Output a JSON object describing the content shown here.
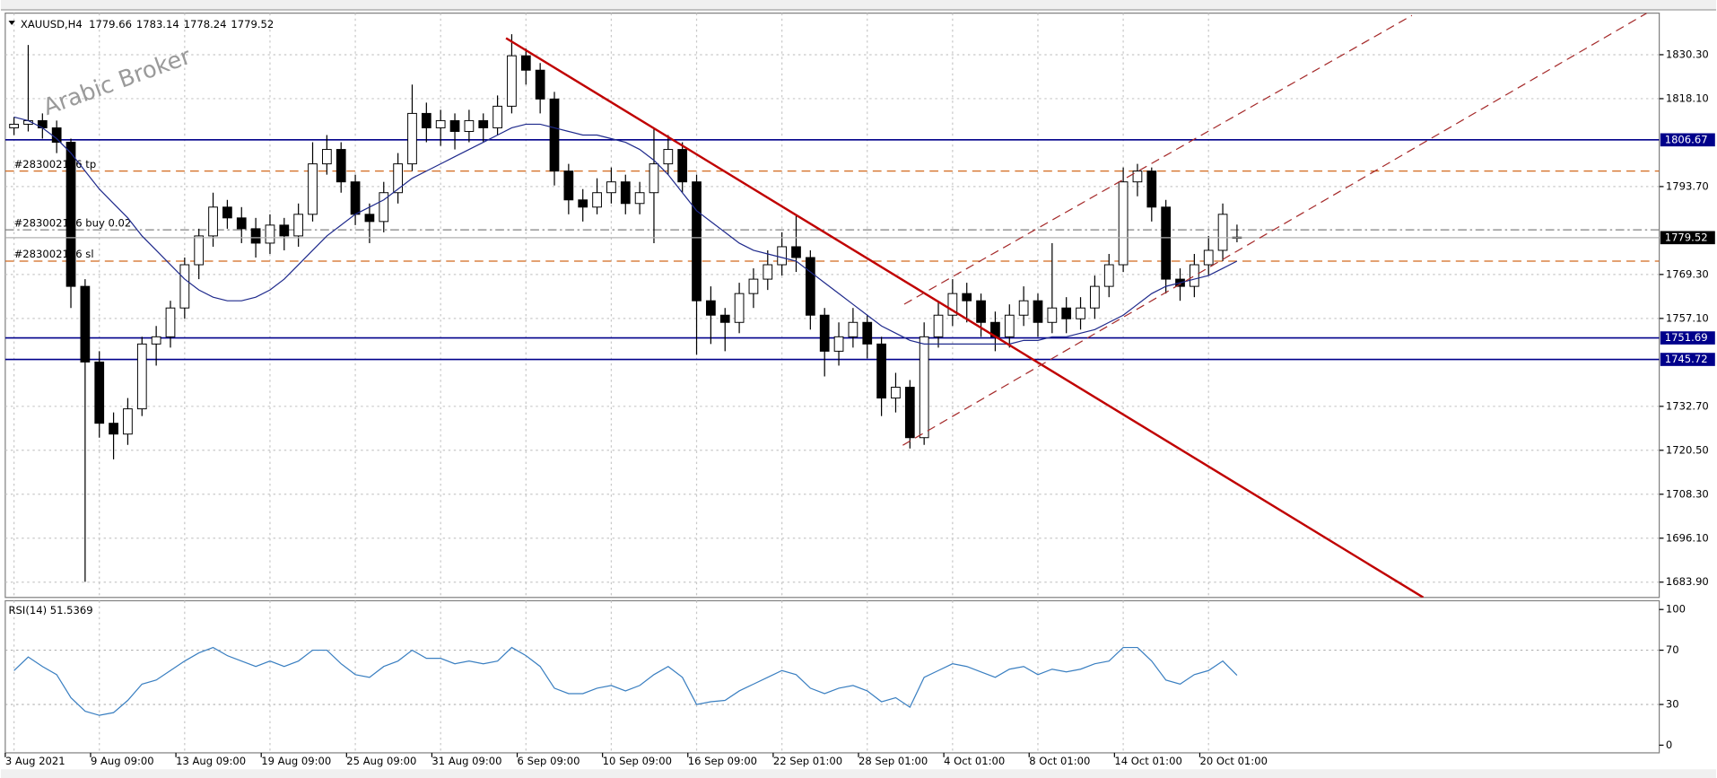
{
  "chart_data": {
    "type": "candlestick",
    "title": "XAUUSD,H4",
    "watermark": "Arabic Broker",
    "up_color": "#ffffff",
    "down_color": "#000000",
    "candles": [
      [
        1810,
        1813,
        1808,
        1811
      ],
      [
        1811,
        1833,
        1809,
        1812
      ],
      [
        1812,
        1814,
        1807,
        1810
      ],
      [
        1810,
        1812,
        1803,
        1806
      ],
      [
        1806,
        1807,
        1760,
        1766
      ],
      [
        1766,
        1768,
        1684,
        1745
      ],
      [
        1745,
        1748,
        1724,
        1728
      ],
      [
        1728,
        1731,
        1718,
        1725
      ],
      [
        1725,
        1735,
        1722,
        1732
      ],
      [
        1732,
        1752,
        1730,
        1750
      ],
      [
        1750,
        1755,
        1744,
        1752
      ],
      [
        1752,
        1762,
        1749,
        1760
      ],
      [
        1760,
        1774,
        1757,
        1772
      ],
      [
        1772,
        1782,
        1768,
        1780
      ],
      [
        1780,
        1792,
        1777,
        1788
      ],
      [
        1788,
        1790,
        1782,
        1785
      ],
      [
        1785,
        1788,
        1778,
        1782
      ],
      [
        1782,
        1785,
        1774,
        1778
      ],
      [
        1778,
        1786,
        1775,
        1783
      ],
      [
        1783,
        1785,
        1776,
        1780
      ],
      [
        1780,
        1789,
        1777,
        1786
      ],
      [
        1786,
        1806,
        1784,
        1800
      ],
      [
        1800,
        1808,
        1797,
        1804
      ],
      [
        1804,
        1806,
        1792,
        1795
      ],
      [
        1795,
        1797,
        1783,
        1786
      ],
      [
        1786,
        1789,
        1778,
        1784
      ],
      [
        1784,
        1795,
        1781,
        1792
      ],
      [
        1792,
        1803,
        1789,
        1800
      ],
      [
        1800,
        1822,
        1798,
        1814
      ],
      [
        1814,
        1817,
        1806,
        1810
      ],
      [
        1810,
        1815,
        1805,
        1812
      ],
      [
        1812,
        1814,
        1804,
        1809
      ],
      [
        1809,
        1815,
        1806,
        1812
      ],
      [
        1812,
        1814,
        1806,
        1810
      ],
      [
        1810,
        1819,
        1808,
        1816
      ],
      [
        1816,
        1836,
        1814,
        1830
      ],
      [
        1830,
        1832,
        1822,
        1826
      ],
      [
        1826,
        1828,
        1814,
        1818
      ],
      [
        1818,
        1820,
        1794,
        1798
      ],
      [
        1798,
        1800,
        1786,
        1790
      ],
      [
        1790,
        1793,
        1784,
        1788
      ],
      [
        1788,
        1796,
        1786,
        1792
      ],
      [
        1792,
        1799,
        1789,
        1795
      ],
      [
        1795,
        1797,
        1786,
        1789
      ],
      [
        1789,
        1795,
        1786,
        1792
      ],
      [
        1792,
        1810,
        1778,
        1800
      ],
      [
        1800,
        1808,
        1797,
        1804
      ],
      [
        1804,
        1806,
        1792,
        1795
      ],
      [
        1795,
        1797,
        1747,
        1762
      ],
      [
        1762,
        1766,
        1750,
        1758
      ],
      [
        1758,
        1760,
        1748,
        1756
      ],
      [
        1756,
        1767,
        1753,
        1764
      ],
      [
        1764,
        1771,
        1760,
        1768
      ],
      [
        1768,
        1776,
        1765,
        1772
      ],
      [
        1772,
        1781,
        1769,
        1777
      ],
      [
        1777,
        1786,
        1770,
        1774
      ],
      [
        1774,
        1776,
        1754,
        1758
      ],
      [
        1758,
        1760,
        1741,
        1748
      ],
      [
        1748,
        1756,
        1744,
        1752
      ],
      [
        1752,
        1760,
        1749,
        1756
      ],
      [
        1756,
        1758,
        1746,
        1750
      ],
      [
        1750,
        1752,
        1730,
        1735
      ],
      [
        1735,
        1742,
        1731,
        1738
      ],
      [
        1738,
        1740,
        1721,
        1724
      ],
      [
        1724,
        1756,
        1722,
        1752
      ],
      [
        1752,
        1762,
        1749,
        1758
      ],
      [
        1758,
        1768,
        1755,
        1764
      ],
      [
        1764,
        1767,
        1756,
        1762
      ],
      [
        1762,
        1764,
        1752,
        1756
      ],
      [
        1756,
        1759,
        1748,
        1752
      ],
      [
        1752,
        1761,
        1749,
        1758
      ],
      [
        1758,
        1766,
        1755,
        1762
      ],
      [
        1762,
        1764,
        1752,
        1756
      ],
      [
        1756,
        1778,
        1753,
        1760
      ],
      [
        1760,
        1763,
        1753,
        1757
      ],
      [
        1757,
        1763,
        1754,
        1760
      ],
      [
        1760,
        1769,
        1757,
        1766
      ],
      [
        1766,
        1775,
        1763,
        1772
      ],
      [
        1772,
        1799,
        1770,
        1795
      ],
      [
        1795,
        1800,
        1791,
        1798
      ],
      [
        1798,
        1799,
        1784,
        1788
      ],
      [
        1788,
        1790,
        1764,
        1768
      ],
      [
        1768,
        1771,
        1762,
        1766
      ],
      [
        1766,
        1775,
        1763,
        1772
      ],
      [
        1772,
        1780,
        1769,
        1776
      ],
      [
        1776,
        1789,
        1773,
        1786
      ],
      [
        1779.66,
        1783.14,
        1778.24,
        1779.52
      ]
    ],
    "categories": [
      "3 Aug 2021",
      null,
      null,
      null,
      null,
      null,
      "9 Aug 09:00",
      null,
      null,
      null,
      null,
      null,
      "13 Aug 09:00",
      null,
      null,
      null,
      null,
      null,
      "19 Aug 09:00",
      null,
      null,
      null,
      null,
      null,
      "25 Aug 09:00",
      null,
      null,
      null,
      null,
      null,
      "31 Aug 09:00",
      null,
      null,
      null,
      null,
      null,
      "6 Sep 09:00",
      null,
      null,
      null,
      null,
      null,
      "10 Sep 09:00",
      null,
      null,
      null,
      null,
      null,
      "16 Sep 09:00",
      null,
      null,
      null,
      null,
      null,
      "22 Sep 01:00",
      null,
      null,
      null,
      null,
      null,
      "28 Sep 01:00",
      null,
      null,
      null,
      null,
      null,
      "4 Oct 01:00",
      null,
      null,
      null,
      null,
      null,
      "8 Oct 01:00",
      null,
      null,
      null,
      null,
      null,
      "14 Oct 01:00",
      null,
      null,
      null,
      null,
      null,
      "20 Oct 01:00",
      null,
      null
    ],
    "ma": [
      1813,
      1812,
      1810,
      1807,
      1803,
      1798,
      1793,
      1789,
      1785,
      1780,
      1776,
      1772,
      1768,
      1765,
      1763,
      1762,
      1762,
      1763,
      1765,
      1768,
      1772,
      1776,
      1780,
      1783,
      1786,
      1788,
      1790,
      1793,
      1796,
      1798,
      1800,
      1802,
      1804,
      1806,
      1808,
      1810,
      1811,
      1811,
      1810,
      1809,
      1808,
      1808,
      1807,
      1806,
      1804,
      1801,
      1797,
      1792,
      1787,
      1784,
      1781,
      1778,
      1776,
      1775,
      1774,
      1773,
      1770,
      1767,
      1764,
      1761,
      1758,
      1755,
      1753,
      1751,
      1750,
      1750,
      1750,
      1750,
      1750,
      1750,
      1750,
      1751,
      1751,
      1752,
      1752,
      1753,
      1754,
      1756,
      1758,
      1761,
      1764,
      1766,
      1767,
      1768,
      1769,
      1771,
      1773
    ],
    "ma_color": "#1f2a8c",
    "ylim": [
      1679.65,
      1841.84
    ],
    "yticks": [
      {
        "value": 1830.3,
        "label": "1830.30"
      },
      {
        "value": 1818.1,
        "label": "1818.10"
      },
      {
        "value": 1793.7,
        "label": "1793.70"
      },
      {
        "value": 1769.3,
        "label": "1769.30"
      },
      {
        "value": 1757.1,
        "label": "1757.10"
      },
      {
        "value": 1732.7,
        "label": "1732.70"
      },
      {
        "value": 1720.5,
        "label": "1720.50"
      },
      {
        "value": 1708.3,
        "label": "1708.30"
      },
      {
        "value": 1696.1,
        "label": "1696.10"
      },
      {
        "value": 1683.9,
        "label": "1683.90"
      }
    ],
    "grid": true,
    "levels": [
      {
        "value": 1806.67,
        "color": "#00008b"
      },
      {
        "value": 1751.69,
        "color": "#00008b"
      },
      {
        "value": 1745.72,
        "color": "#00008b"
      }
    ],
    "orders": [
      {
        "label": "#283002146 tp",
        "value": 1798.0,
        "color": "#d2691e",
        "style": "dashed"
      },
      {
        "label": "#283002146 buy 0.02",
        "value": 1781.7,
        "color": "#808080",
        "style": "dashdot"
      },
      {
        "label": "#283002146 sl",
        "value": 1773.0,
        "color": "#d2691e",
        "style": "dashed"
      }
    ],
    "trendlines": [
      {
        "points": [
          [
            34.6,
            1834.9
          ],
          [
            99.1,
            1679.65
          ]
        ],
        "color": "#c00000",
        "style": "solid"
      },
      {
        "points": [
          [
            62.6,
            1761.05
          ],
          [
            98.3,
            1841.2
          ]
        ],
        "color": "#a52a2a",
        "style": "dashed"
      },
      {
        "points": [
          [
            62.5,
            1721.9
          ],
          [
            114.8,
            1841.8
          ]
        ],
        "color": "#a52a2a",
        "style": "dashed"
      }
    ],
    "rsi": {
      "title": "RSI(14) 51.5369",
      "color": "#3a7fc1",
      "ylim": [
        0,
        100
      ],
      "yticks": [
        0,
        30,
        70,
        100
      ],
      "levels": [
        30,
        70
      ],
      "values": [
        55,
        65,
        58,
        52,
        35,
        25,
        22,
        24,
        33,
        45,
        48,
        55,
        62,
        68,
        72,
        66,
        62,
        58,
        62,
        58,
        62,
        70,
        70,
        60,
        52,
        50,
        58,
        62,
        70,
        64,
        64,
        60,
        62,
        60,
        62,
        72,
        66,
        58,
        42,
        38,
        38,
        42,
        44,
        40,
        44,
        52,
        58,
        50,
        30,
        32,
        33,
        40,
        45,
        50,
        55,
        52,
        42,
        38,
        42,
        44,
        40,
        32,
        35,
        28,
        50,
        55,
        60,
        58,
        54,
        50,
        56,
        58,
        52,
        56,
        54,
        56,
        60,
        62,
        72,
        72,
        62,
        48,
        45,
        52,
        55,
        62,
        51.5
      ]
    }
  }
}
